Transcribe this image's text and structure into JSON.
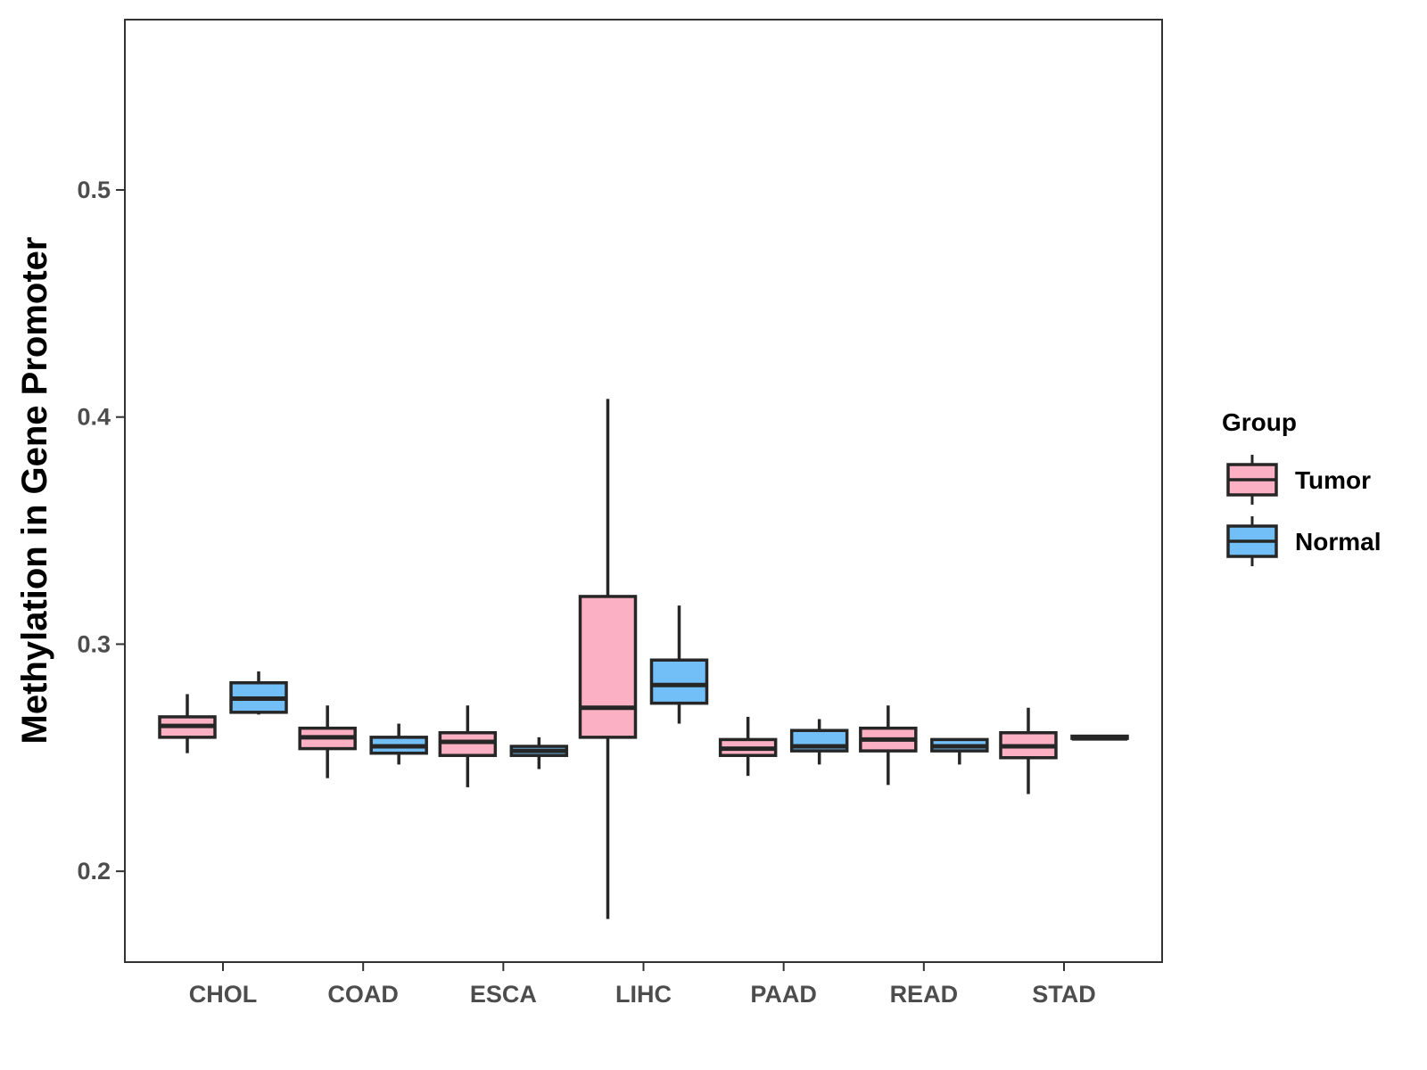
{
  "chart_data": {
    "type": "boxplot",
    "title": "",
    "xlabel": "",
    "ylabel": "Methylation in Gene Promoter",
    "ylim": [
      0.16,
      0.575
    ],
    "yticks": [
      0.2,
      0.3,
      0.4,
      0.5
    ],
    "ytick_labels": [
      "0.2",
      "0.3",
      "0.4",
      "0.5"
    ],
    "grid": false,
    "legend": {
      "title": "Group",
      "position": "right",
      "entries": [
        {
          "name": "Tumor",
          "color": "#FBB0C3"
        },
        {
          "name": "Normal",
          "color": "#72BFF7"
        }
      ]
    },
    "categories": [
      "CHOL",
      "COAD",
      "ESCA",
      "LIHC",
      "PAAD",
      "READ",
      "STAD"
    ],
    "series": [
      {
        "name": "Tumor",
        "color": "#FBB0C3",
        "boxes": [
          {
            "min": 0.252,
            "q1": 0.259,
            "median": 0.264,
            "q3": 0.268,
            "max": 0.278
          },
          {
            "min": 0.241,
            "q1": 0.254,
            "median": 0.259,
            "q3": 0.263,
            "max": 0.273
          },
          {
            "min": 0.237,
            "q1": 0.251,
            "median": 0.257,
            "q3": 0.261,
            "max": 0.273
          },
          {
            "min": 0.179,
            "q1": 0.259,
            "median": 0.272,
            "q3": 0.321,
            "max": 0.408
          },
          {
            "min": 0.242,
            "q1": 0.251,
            "median": 0.254,
            "q3": 0.258,
            "max": 0.268
          },
          {
            "min": 0.238,
            "q1": 0.253,
            "median": 0.258,
            "q3": 0.263,
            "max": 0.273
          },
          {
            "min": 0.234,
            "q1": 0.25,
            "median": 0.255,
            "q3": 0.261,
            "max": 0.272
          }
        ]
      },
      {
        "name": "Normal",
        "color": "#72BFF7",
        "boxes": [
          {
            "min": 0.269,
            "q1": 0.27,
            "median": 0.276,
            "q3": 0.283,
            "max": 0.288
          },
          {
            "min": 0.247,
            "q1": 0.252,
            "median": 0.255,
            "q3": 0.259,
            "max": 0.265
          },
          {
            "min": 0.245,
            "q1": 0.251,
            "median": 0.253,
            "q3": 0.255,
            "max": 0.259
          },
          {
            "min": 0.265,
            "q1": 0.274,
            "median": 0.282,
            "q3": 0.293,
            "max": 0.317
          },
          {
            "min": 0.247,
            "q1": 0.253,
            "median": 0.255,
            "q3": 0.262,
            "max": 0.267
          },
          {
            "min": 0.247,
            "q1": 0.253,
            "median": 0.255,
            "q3": 0.258,
            "max": 0.258
          },
          {
            "min": 0.2585,
            "q1": 0.2585,
            "median": 0.2585,
            "q3": 0.2595,
            "max": 0.2595
          }
        ]
      }
    ]
  }
}
